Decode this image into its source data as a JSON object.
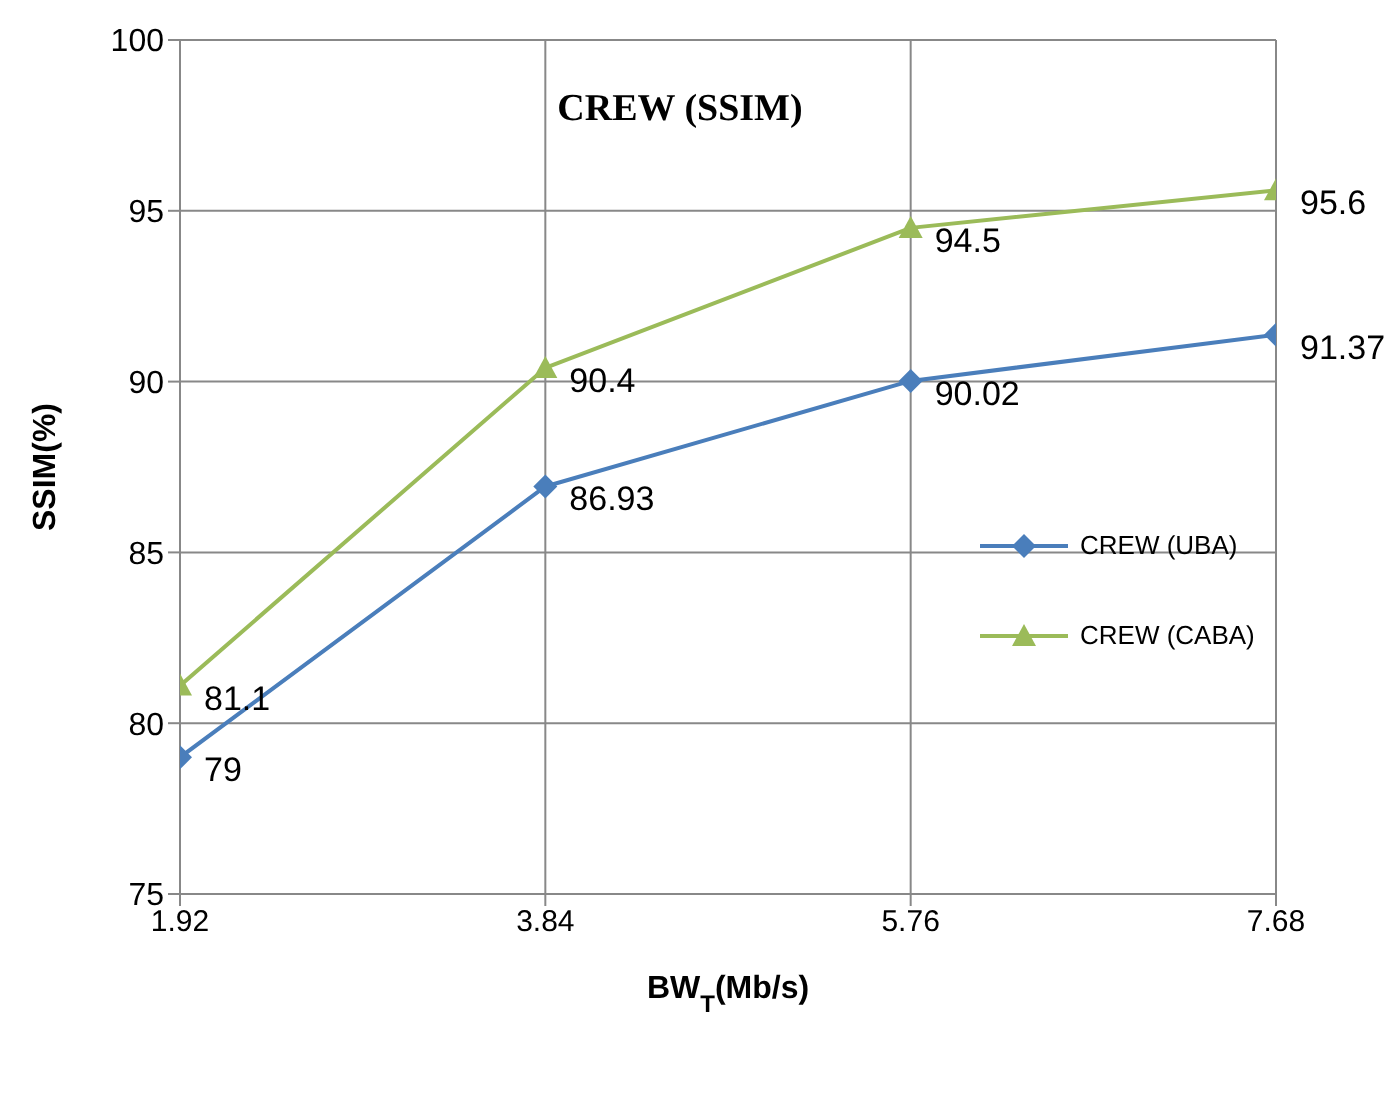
{
  "chart_data": {
    "type": "line",
    "title": "CREW (SSIM)",
    "xlabel": "BW$_{T}$(Mb/s)",
    "ylabel": "SSIM(%)",
    "x": [
      1.92,
      3.84,
      5.76,
      7.68
    ],
    "series": [
      {
        "name": "CREW (UBA)",
        "color": "#4a7ebb",
        "marker": "diamond",
        "values": [
          79,
          86.93,
          90.02,
          91.37
        ]
      },
      {
        "name": "CREW (CABA)",
        "color": "#9bbb59",
        "marker": "triangle",
        "values": [
          81.1,
          90.4,
          94.5,
          95.6
        ]
      }
    ],
    "xlim": [
      1.92,
      7.68
    ],
    "xticks": [
      1.92,
      3.84,
      5.76,
      7.68
    ],
    "ylim": [
      75,
      100
    ],
    "yticks": [
      75,
      80,
      85,
      90,
      95,
      100
    ],
    "grid": true,
    "legend": "right",
    "data_labels": true,
    "line_style": "solid"
  }
}
